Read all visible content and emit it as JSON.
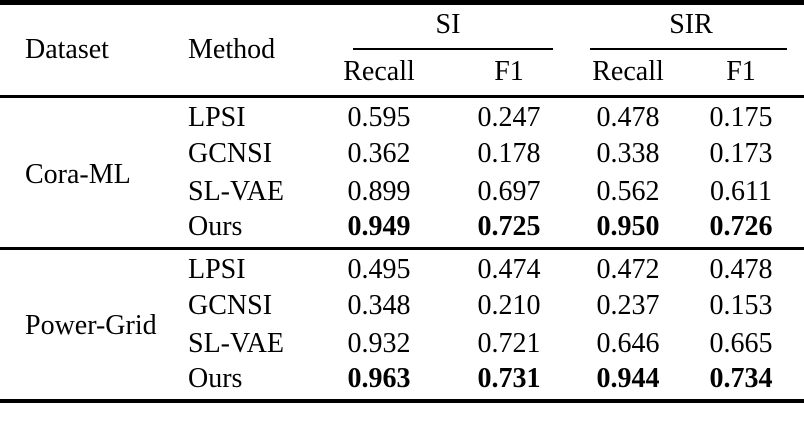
{
  "figure": {
    "type": "paper-results-table",
    "colors": {
      "text": "#000000",
      "rule": "#000000",
      "background": "#ffffff"
    }
  },
  "table": {
    "header": {
      "dataset": "Dataset",
      "method": "Method",
      "groups": [
        {
          "label": "SI",
          "subcolumns": [
            "Recall",
            "F1"
          ]
        },
        {
          "label": "SIR",
          "subcolumns": [
            "Recall",
            "F1"
          ]
        }
      ]
    },
    "sections": [
      {
        "dataset": "Cora-ML",
        "rows": [
          {
            "method": "LPSI",
            "si_recall": "0.595",
            "si_f1": "0.247",
            "sir_recall": "0.478",
            "sir_f1": "0.175",
            "bold": false
          },
          {
            "method": "GCNSI",
            "si_recall": "0.362",
            "si_f1": "0.178",
            "sir_recall": "0.338",
            "sir_f1": "0.173",
            "bold": false
          },
          {
            "method": "SL-VAE",
            "si_recall": "0.899",
            "si_f1": "0.697",
            "sir_recall": "0.562",
            "sir_f1": "0.611",
            "bold": false
          },
          {
            "method": "Ours",
            "si_recall": "0.949",
            "si_f1": "0.725",
            "sir_recall": "0.950",
            "sir_f1": "0.726",
            "bold": true
          }
        ]
      },
      {
        "dataset": "Power-Grid",
        "rows": [
          {
            "method": "LPSI",
            "si_recall": "0.495",
            "si_f1": "0.474",
            "sir_recall": "0.472",
            "sir_f1": "0.478",
            "bold": false
          },
          {
            "method": "GCNSI",
            "si_recall": "0.348",
            "si_f1": "0.210",
            "sir_recall": "0.237",
            "sir_f1": "0.153",
            "bold": false
          },
          {
            "method": "SL-VAE",
            "si_recall": "0.932",
            "si_f1": "0.721",
            "sir_recall": "0.646",
            "sir_f1": "0.665",
            "bold": false
          },
          {
            "method": "Ours",
            "si_recall": "0.963",
            "si_f1": "0.731",
            "sir_recall": "0.944",
            "sir_f1": "0.734",
            "bold": true
          }
        ]
      }
    ]
  }
}
